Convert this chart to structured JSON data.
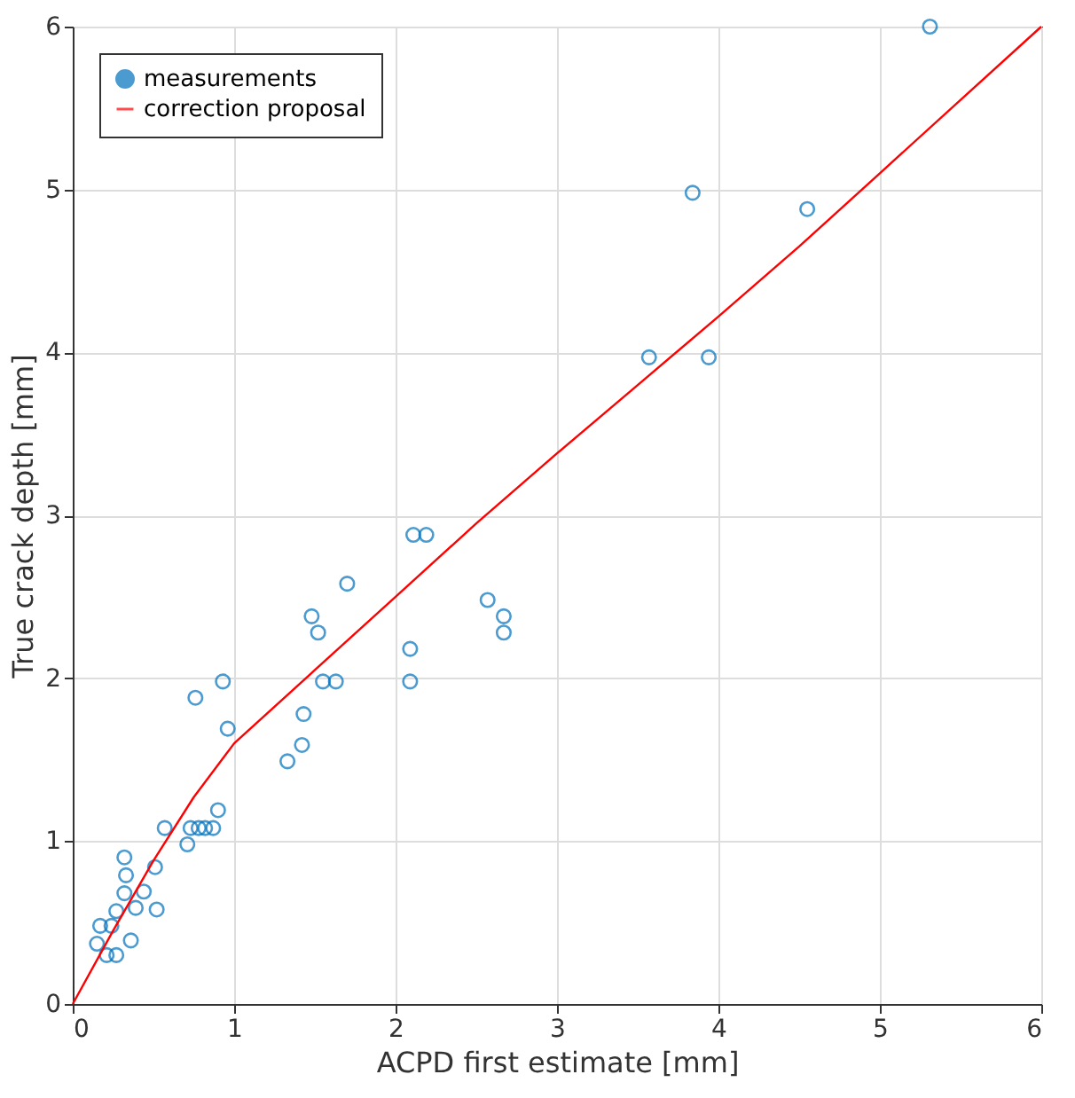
{
  "chart_data": {
    "type": "scatter",
    "xlabel": "ACPD first estimate [mm]",
    "ylabel": "True crack depth [mm]",
    "xlim": [
      0,
      6
    ],
    "ylim": [
      0,
      6
    ],
    "xticks": [
      0,
      1,
      2,
      3,
      4,
      5,
      6
    ],
    "yticks": [
      0,
      1,
      2,
      3,
      4,
      5,
      6
    ],
    "grid": true,
    "legend": "top left",
    "series": [
      {
        "name": "measurements",
        "marker": "circle",
        "color": "#0072bd",
        "x": [
          5.31,
          3.84,
          4.55,
          3.57,
          3.94,
          2.11,
          2.19,
          1.7,
          2.57,
          2.67,
          2.67,
          1.48,
          1.52,
          2.09,
          2.09,
          1.55,
          1.63,
          0.93,
          0.76,
          1.43,
          0.96,
          1.42,
          1.33,
          0.9,
          0.57,
          0.73,
          0.78,
          0.82,
          0.87,
          0.71,
          0.32,
          0.33,
          0.51,
          0.32,
          0.44,
          0.27,
          0.39,
          0.52,
          0.17,
          0.15,
          0.36,
          0.21,
          0.27,
          0.24
        ],
        "values": [
          6.0,
          4.98,
          4.88,
          3.97,
          3.97,
          2.88,
          2.88,
          2.58,
          2.48,
          2.38,
          2.28,
          2.38,
          2.28,
          2.18,
          1.98,
          1.98,
          1.98,
          1.98,
          1.88,
          1.78,
          1.69,
          1.59,
          1.49,
          1.19,
          1.08,
          1.08,
          1.08,
          1.08,
          1.08,
          0.98,
          0.9,
          0.79,
          0.84,
          0.68,
          0.69,
          0.57,
          0.59,
          0.58,
          0.48,
          0.37,
          0.39,
          0.3,
          0.3,
          0.48
        ]
      },
      {
        "name": "correction proposal",
        "type": "line",
        "marker": "none",
        "line_style": "solid",
        "color": "#ff0000",
        "x": [
          0,
          0.25,
          0.5,
          0.75,
          1,
          1.5,
          2,
          2.5,
          3,
          3.5,
          4,
          4.5,
          5,
          5.5,
          6
        ],
        "values": [
          0,
          0.45,
          0.88,
          1.27,
          1.6,
          2.05,
          2.5,
          2.95,
          3.38,
          3.8,
          4.22,
          4.65,
          5.1,
          5.55,
          6.0
        ]
      }
    ]
  }
}
